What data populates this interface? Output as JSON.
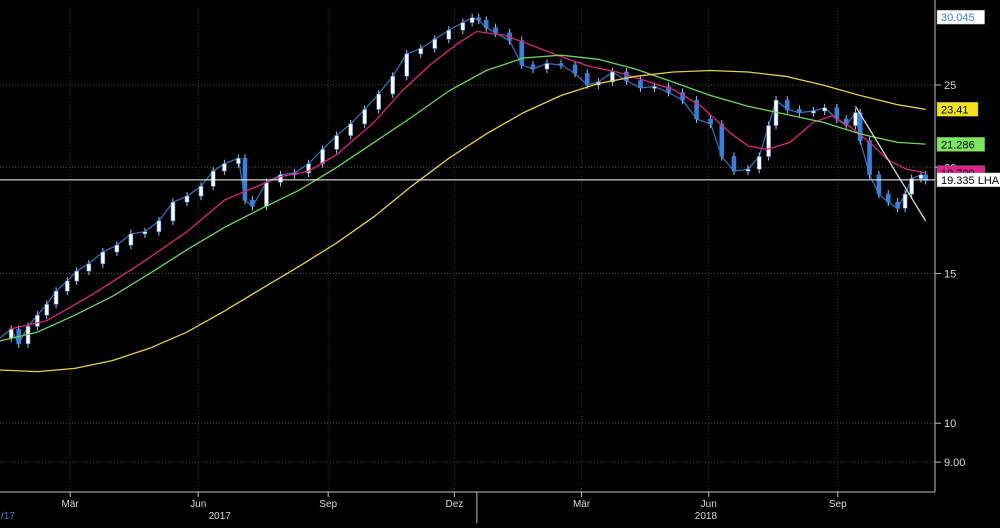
{
  "chart_data": {
    "type": "line",
    "title": "",
    "scale": "log",
    "ylim": [
      8.3,
      30.8
    ],
    "grid": true,
    "y_ticks": [
      {
        "value": 25,
        "label": "25"
      },
      {
        "value": 20,
        "label": "20"
      },
      {
        "value": 15,
        "label": "15"
      },
      {
        "value": 10,
        "label": "10"
      },
      {
        "value": 9,
        "label": "9.00"
      }
    ],
    "x_months": [
      {
        "label": "Mär",
        "t": 0.075
      },
      {
        "label": "Jun",
        "t": 0.212
      },
      {
        "label": "Sep",
        "t": 0.351
      },
      {
        "label": "Dez",
        "t": 0.486
      },
      {
        "label": "Mär",
        "t": 0.622
      },
      {
        "label": "Jun",
        "t": 0.758
      },
      {
        "label": "Sep",
        "t": 0.896
      }
    ],
    "x_years": [
      {
        "label": "2017",
        "t": 0.235
      },
      {
        "label": "2018",
        "t": 0.755
      }
    ],
    "year_divider_t": 0.51,
    "left_edge_label": "/17",
    "last_value_line": 19.335,
    "right_labels": [
      {
        "label": "30.045",
        "value": 30.045,
        "color": "#ffffff",
        "text_color": "#3b7fd6",
        "style": "box"
      },
      {
        "label": "23.41",
        "value": 23.41,
        "color": "#f1e21d",
        "text_color": "#000000",
        "style": "box"
      },
      {
        "label": "21.286",
        "value": 21.286,
        "color": "#7be85f",
        "text_color": "#000000",
        "style": "box"
      },
      {
        "label": "19.709",
        "value": 19.709,
        "color": "#e0238a",
        "text_color": "#000000",
        "style": "box"
      },
      {
        "label": "19.335 LHA",
        "value": 19.335,
        "color": "#ffffff",
        "text_color": "#000000",
        "style": "box"
      }
    ],
    "series": [
      {
        "id": "price",
        "kind": "candles",
        "color": "#3b7fd6",
        "points": [
          [
            0.0,
            12.6
          ],
          [
            0.012,
            12.9
          ],
          [
            0.02,
            12.4
          ],
          [
            0.03,
            13.0
          ],
          [
            0.04,
            13.4
          ],
          [
            0.05,
            13.8
          ],
          [
            0.06,
            14.3
          ],
          [
            0.072,
            14.7
          ],
          [
            0.082,
            15.1
          ],
          [
            0.095,
            15.4
          ],
          [
            0.11,
            15.9
          ],
          [
            0.125,
            16.2
          ],
          [
            0.14,
            16.7
          ],
          [
            0.155,
            16.8
          ],
          [
            0.17,
            17.3
          ],
          [
            0.185,
            18.2
          ],
          [
            0.2,
            18.5
          ],
          [
            0.215,
            19.0
          ],
          [
            0.228,
            19.8
          ],
          [
            0.24,
            20.2
          ],
          [
            0.255,
            20.5
          ],
          [
            0.262,
            18.3
          ],
          [
            0.27,
            18.0
          ],
          [
            0.285,
            19.2
          ],
          [
            0.3,
            19.6
          ],
          [
            0.315,
            19.7
          ],
          [
            0.33,
            20.2
          ],
          [
            0.345,
            21.0
          ],
          [
            0.36,
            21.8
          ],
          [
            0.375,
            22.5
          ],
          [
            0.39,
            23.4
          ],
          [
            0.405,
            24.4
          ],
          [
            0.42,
            25.6
          ],
          [
            0.435,
            27.2
          ],
          [
            0.45,
            27.6
          ],
          [
            0.465,
            28.3
          ],
          [
            0.48,
            29.0
          ],
          [
            0.495,
            29.6
          ],
          [
            0.505,
            30.0
          ],
          [
            0.512,
            29.8
          ],
          [
            0.52,
            29.2
          ],
          [
            0.53,
            28.8
          ],
          [
            0.545,
            28.2
          ],
          [
            0.558,
            26.4
          ],
          [
            0.57,
            26.1
          ],
          [
            0.585,
            26.5
          ],
          [
            0.6,
            26.4
          ],
          [
            0.615,
            25.8
          ],
          [
            0.628,
            25.0
          ],
          [
            0.64,
            25.2
          ],
          [
            0.655,
            25.9
          ],
          [
            0.67,
            25.3
          ],
          [
            0.685,
            24.8
          ],
          [
            0.7,
            24.9
          ],
          [
            0.715,
            24.5
          ],
          [
            0.73,
            24.0
          ],
          [
            0.745,
            22.8
          ],
          [
            0.76,
            22.5
          ],
          [
            0.772,
            20.6
          ],
          [
            0.785,
            19.8
          ],
          [
            0.8,
            19.9
          ],
          [
            0.812,
            20.6
          ],
          [
            0.822,
            22.4
          ],
          [
            0.83,
            24.0
          ],
          [
            0.842,
            23.4
          ],
          [
            0.855,
            23.2
          ],
          [
            0.87,
            23.3
          ],
          [
            0.882,
            23.5
          ],
          [
            0.895,
            22.8
          ],
          [
            0.905,
            22.4
          ],
          [
            0.915,
            23.2
          ],
          [
            0.92,
            21.5
          ],
          [
            0.93,
            19.6
          ],
          [
            0.94,
            18.6
          ],
          [
            0.95,
            18.2
          ],
          [
            0.96,
            17.9
          ],
          [
            0.968,
            18.6
          ],
          [
            0.975,
            19.4
          ],
          [
            0.985,
            19.6
          ],
          [
            0.99,
            19.3
          ]
        ]
      },
      {
        "id": "ma_short",
        "kind": "line",
        "color": "#d8267e",
        "points": [
          [
            0.01,
            12.9
          ],
          [
            0.05,
            13.2
          ],
          [
            0.1,
            14.2
          ],
          [
            0.15,
            15.4
          ],
          [
            0.2,
            16.8
          ],
          [
            0.24,
            18.3
          ],
          [
            0.265,
            18.8
          ],
          [
            0.3,
            19.5
          ],
          [
            0.33,
            19.8
          ],
          [
            0.36,
            20.7
          ],
          [
            0.4,
            22.6
          ],
          [
            0.43,
            24.6
          ],
          [
            0.46,
            26.4
          ],
          [
            0.49,
            28.0
          ],
          [
            0.51,
            28.9
          ],
          [
            0.54,
            28.6
          ],
          [
            0.57,
            27.8
          ],
          [
            0.6,
            27.0
          ],
          [
            0.63,
            26.3
          ],
          [
            0.66,
            25.9
          ],
          [
            0.69,
            25.3
          ],
          [
            0.72,
            24.7
          ],
          [
            0.75,
            23.6
          ],
          [
            0.78,
            22.0
          ],
          [
            0.8,
            21.2
          ],
          [
            0.82,
            21.0
          ],
          [
            0.845,
            21.4
          ],
          [
            0.87,
            22.6
          ],
          [
            0.89,
            23.0
          ],
          [
            0.91,
            22.3
          ],
          [
            0.93,
            21.4
          ],
          [
            0.95,
            20.4
          ],
          [
            0.97,
            19.9
          ],
          [
            0.99,
            19.7
          ]
        ]
      },
      {
        "id": "ma_mid",
        "kind": "line",
        "color": "#6fd45a",
        "points": [
          [
            0.0,
            12.5
          ],
          [
            0.04,
            12.8
          ],
          [
            0.08,
            13.4
          ],
          [
            0.12,
            14.1
          ],
          [
            0.16,
            15.0
          ],
          [
            0.2,
            16.0
          ],
          [
            0.24,
            17.0
          ],
          [
            0.28,
            17.9
          ],
          [
            0.32,
            18.8
          ],
          [
            0.36,
            20.0
          ],
          [
            0.4,
            21.4
          ],
          [
            0.44,
            22.9
          ],
          [
            0.48,
            24.6
          ],
          [
            0.52,
            26.0
          ],
          [
            0.56,
            26.9
          ],
          [
            0.6,
            27.1
          ],
          [
            0.64,
            26.8
          ],
          [
            0.68,
            26.1
          ],
          [
            0.72,
            25.2
          ],
          [
            0.76,
            24.3
          ],
          [
            0.8,
            23.6
          ],
          [
            0.84,
            23.1
          ],
          [
            0.88,
            22.6
          ],
          [
            0.92,
            21.9
          ],
          [
            0.96,
            21.4
          ],
          [
            0.99,
            21.3
          ]
        ]
      },
      {
        "id": "ma_long",
        "kind": "line",
        "color": "#e3cf52",
        "points": [
          [
            0.0,
            11.55
          ],
          [
            0.04,
            11.5
          ],
          [
            0.08,
            11.6
          ],
          [
            0.12,
            11.85
          ],
          [
            0.16,
            12.25
          ],
          [
            0.2,
            12.8
          ],
          [
            0.24,
            13.55
          ],
          [
            0.28,
            14.4
          ],
          [
            0.32,
            15.3
          ],
          [
            0.36,
            16.3
          ],
          [
            0.4,
            17.5
          ],
          [
            0.44,
            19.0
          ],
          [
            0.48,
            20.5
          ],
          [
            0.52,
            21.9
          ],
          [
            0.56,
            23.2
          ],
          [
            0.6,
            24.3
          ],
          [
            0.64,
            25.1
          ],
          [
            0.68,
            25.6
          ],
          [
            0.72,
            25.9
          ],
          [
            0.76,
            26.0
          ],
          [
            0.8,
            25.9
          ],
          [
            0.84,
            25.6
          ],
          [
            0.88,
            25.0
          ],
          [
            0.92,
            24.3
          ],
          [
            0.96,
            23.7
          ],
          [
            0.99,
            23.4
          ]
        ]
      },
      {
        "id": "trendline",
        "kind": "line",
        "color": "#d9d9d9",
        "points": [
          [
            0.915,
            23.6
          ],
          [
            0.99,
            17.3
          ]
        ]
      }
    ]
  }
}
